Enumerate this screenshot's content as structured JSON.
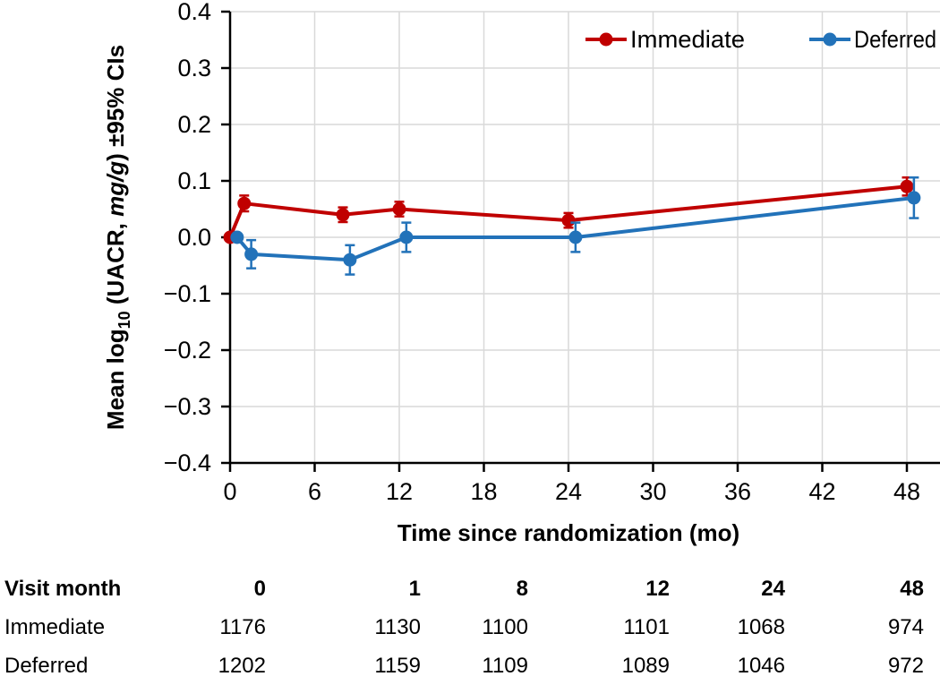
{
  "chart_data": {
    "type": "line",
    "title": "",
    "xlabel": "Time since randomization (mo)",
    "ylabel_text": "Mean log10 (UACR, mg/g) ±95% CIs",
    "ylabel_parts": [
      {
        "text": "Mean log"
      },
      {
        "text": "10",
        "sub": true
      },
      {
        "text": " (UACR, "
      },
      {
        "text": "mg/g",
        "italic": true
      },
      {
        "text": ") ±95% CIs"
      }
    ],
    "x_ticks": [
      {
        "value": 0,
        "label": "0"
      },
      {
        "value": 6,
        "label": "6"
      },
      {
        "value": 12,
        "label": "12"
      },
      {
        "value": 18,
        "label": "18"
      },
      {
        "value": 24,
        "label": "24"
      },
      {
        "value": 30,
        "label": "30"
      },
      {
        "value": 36,
        "label": "36"
      },
      {
        "value": 42,
        "label": "42"
      },
      {
        "value": 48,
        "label": "48"
      }
    ],
    "y_ticks": [
      {
        "value": 0.4,
        "label": "0.4"
      },
      {
        "value": 0.3,
        "label": "0.3"
      },
      {
        "value": 0.2,
        "label": "0.2"
      },
      {
        "value": 0.1,
        "label": "0.1"
      },
      {
        "value": 0.0,
        "label": "0.0"
      },
      {
        "value": -0.1,
        "label": "−0.1"
      },
      {
        "value": -0.2,
        "label": "−0.2"
      },
      {
        "value": -0.3,
        "label": "−0.3"
      },
      {
        "value": -0.4,
        "label": "−0.4"
      }
    ],
    "xlim": [
      0,
      50.3
    ],
    "ylim": [
      -0.4,
      0.4
    ],
    "grid": true,
    "legend_position": "top-right",
    "series": [
      {
        "name": "Immediate",
        "color": "#c00000",
        "x_offset": 0,
        "x": [
          0,
          1,
          8,
          12,
          24,
          48
        ],
        "y": [
          0.0,
          0.06,
          0.04,
          0.05,
          0.03,
          0.09
        ],
        "ci": [
          0.004,
          0.014,
          0.013,
          0.013,
          0.013,
          0.016
        ]
      },
      {
        "name": "Deferred",
        "color": "#2272b9",
        "x_offset": 0.5,
        "x": [
          0,
          1,
          8,
          12,
          24,
          48
        ],
        "y": [
          0.0,
          -0.03,
          -0.04,
          0.0,
          0.0,
          0.07
        ],
        "ci": [
          0.004,
          0.025,
          0.026,
          0.026,
          0.026,
          0.036
        ]
      }
    ]
  },
  "table": {
    "header_label": "Visit month",
    "columns": [
      "0",
      "1",
      "8",
      "12",
      "24",
      "48"
    ],
    "rows": [
      {
        "label": "Immediate",
        "values": [
          "1176",
          "1130",
          "1100",
          "1101",
          "1068",
          "974"
        ]
      },
      {
        "label": "Deferred",
        "values": [
          "1202",
          "1159",
          "1109",
          "1089",
          "1046",
          "972"
        ]
      }
    ]
  },
  "colors": {
    "immediate": "#c00000",
    "deferred": "#2272b9",
    "grid": "#d9d9d9",
    "axis": "#000000",
    "text": "#000000",
    "background": "#ffffff"
  }
}
